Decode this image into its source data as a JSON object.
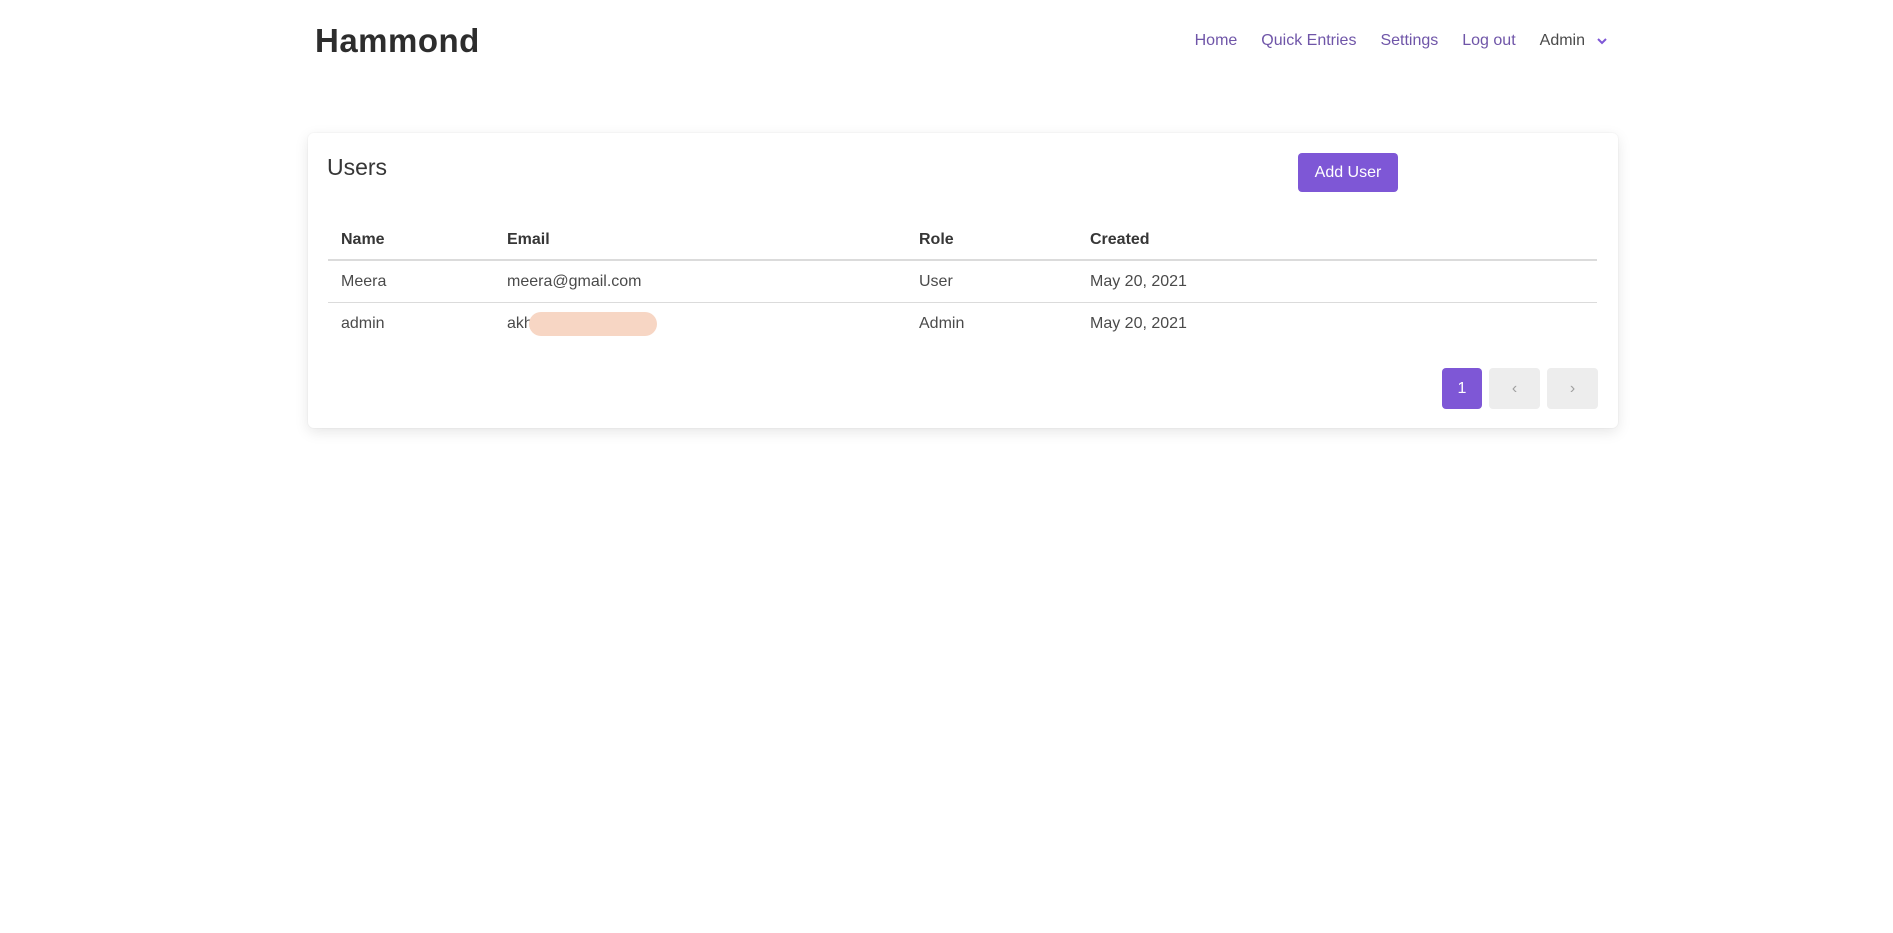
{
  "header": {
    "logo": "Hammond",
    "nav": [
      "Home",
      "Quick Entries",
      "Settings",
      "Log out"
    ],
    "user_menu": "Admin"
  },
  "users": {
    "title": "Users",
    "add_button": "Add User",
    "columns": [
      "Name",
      "Email",
      "Role",
      "Created"
    ],
    "rows": [
      {
        "name": "Meera",
        "email": "meera@gmail.com",
        "role": "User",
        "created": "May 20, 2021"
      },
      {
        "name": "admin",
        "email": "akh",
        "role": "Admin",
        "created": "May 20, 2021"
      }
    ],
    "pagination": {
      "current": "1",
      "prev": "‹",
      "next": "›"
    }
  },
  "colors": {
    "accent": "#7e57d6",
    "nav_link": "#6f55a8"
  }
}
